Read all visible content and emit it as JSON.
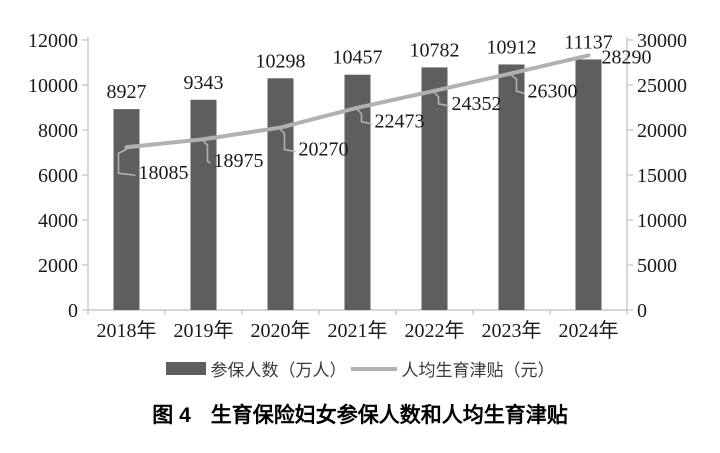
{
  "chart_data": {
    "type": "bar+line",
    "title": "图 4  生育保险妇女参保人数和人均生育津贴",
    "categories": [
      "2018年",
      "2019年",
      "2020年",
      "2021年",
      "2022年",
      "2023年",
      "2024年"
    ],
    "series": [
      {
        "name": "参保人数（万人）",
        "type": "bar",
        "axis": "left",
        "color": "#5e5e5e",
        "values": [
          8927,
          9343,
          10298,
          10457,
          10782,
          10912,
          11137
        ]
      },
      {
        "name": "人均生育津贴（元）",
        "type": "line",
        "axis": "right",
        "color": "#b1b1b1",
        "values": [
          18085,
          18975,
          20270,
          22473,
          24352,
          26300,
          28290
        ]
      }
    ],
    "left_axis": {
      "min": 0,
      "max": 12000,
      "step": 2000,
      "tick_labels": [
        "0",
        "2000",
        "4000",
        "6000",
        "8000",
        "10000",
        "12000"
      ]
    },
    "right_axis": {
      "min": 0,
      "max": 30000,
      "step": 5000,
      "tick_labels": [
        "0",
        "5000",
        "10000",
        "15000",
        "20000",
        "25000",
        "30000"
      ]
    },
    "grid": false,
    "legend_position": "bottom",
    "colors": {
      "axis": "#c9c9c9",
      "text": "#1a1a1a"
    }
  },
  "legend": {
    "items": [
      {
        "label": "参保人数（万人）",
        "swatch": "bar"
      },
      {
        "label": "人均生育津贴（元）",
        "swatch": "line"
      }
    ]
  },
  "caption": {
    "prefix": "图 4",
    "title": "生育保险妇女参保人数和人均生育津贴"
  }
}
